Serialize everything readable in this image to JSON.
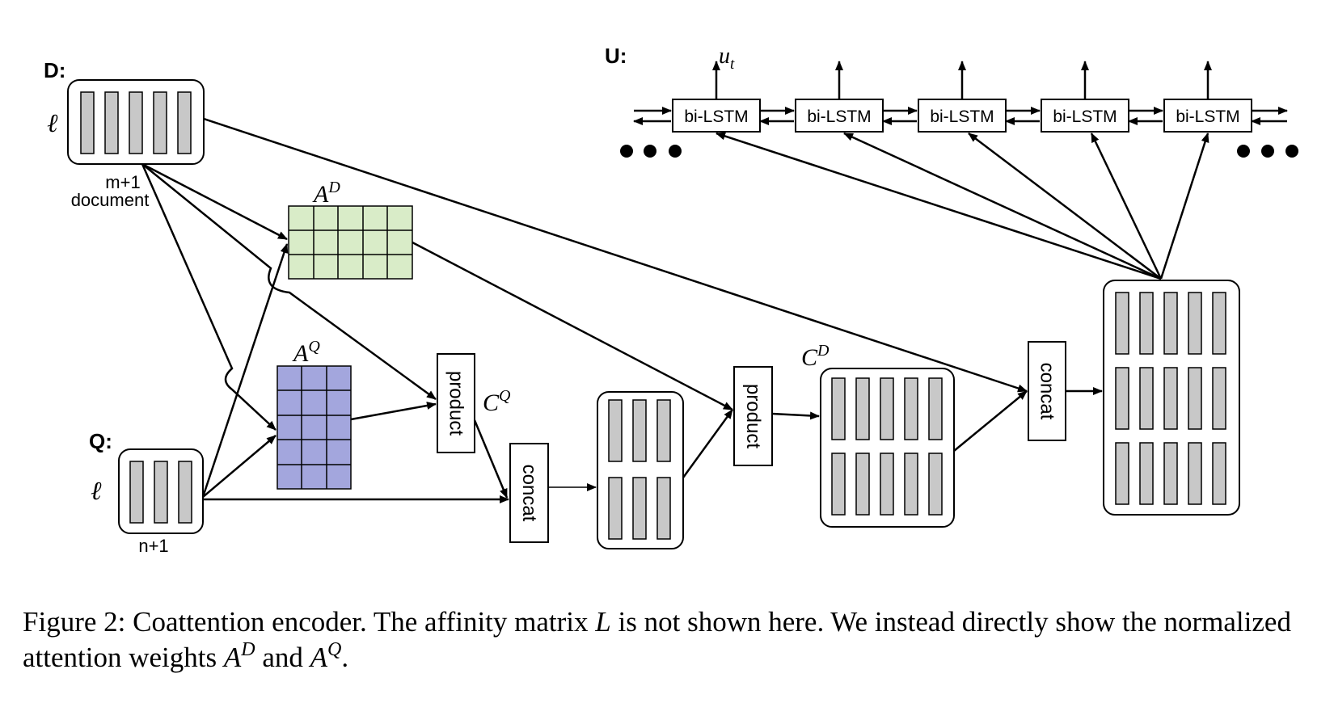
{
  "labels": {
    "d_marker": "D:",
    "q_marker": "Q:",
    "u_marker": "U:",
    "ell": "ℓ",
    "ell_q": "ℓ",
    "doc_size": "m+1",
    "doc_name": "document",
    "q_size": "n+1",
    "ad_base": "A",
    "ad_sup": "D",
    "aq_base": "A",
    "aq_sup": "Q",
    "cq_base": "C",
    "cq_sup": "Q",
    "cd_base": "C",
    "cd_sup": "D",
    "ut_base": "u",
    "ut_sub": "t"
  },
  "lstm_cells": [
    "bi-LSTM",
    "bi-LSTM",
    "bi-LSTM",
    "bi-LSTM",
    "bi-LSTM"
  ],
  "ops": {
    "product1": "product",
    "product2": "product",
    "concat1": "concat",
    "concat2": "concat"
  },
  "caption": {
    "prefix": "Figure 2: Coattention encoder. The affinity matrix ",
    "L": "L",
    "middle": " is not shown here. We instead directly show the normalized attention weights ",
    "ad_base": "A",
    "ad_sup": "D",
    "and": " and ",
    "aq_base": "A",
    "aq_sup": "Q",
    "end": "."
  },
  "colors": {
    "stroke": "#000000",
    "bar_fill": "#c8c8c8",
    "ad_fill": "#d9ecc8",
    "aq_fill": "#a3a6dd"
  }
}
